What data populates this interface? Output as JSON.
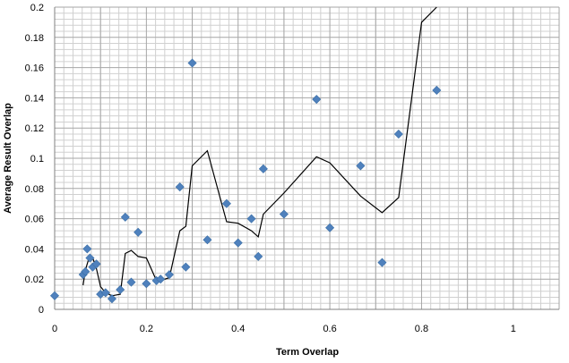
{
  "chart_data": {
    "type": "scatter",
    "title": "",
    "xlabel": "Term Overlap",
    "ylabel": "Average Result  Overlap",
    "xlim": [
      0,
      1.1
    ],
    "ylim": [
      0,
      0.2
    ],
    "x_ticks": [
      0,
      0.2,
      0.4,
      0.6,
      0.8,
      1
    ],
    "x_tick_labels": [
      "0",
      "0.2",
      "0.4",
      "0.6",
      "0.8",
      "1"
    ],
    "y_ticks": [
      0,
      0.02,
      0.04,
      0.06,
      0.08,
      0.1,
      0.12,
      0.14,
      0.16,
      0.18,
      0.2
    ],
    "y_tick_labels": [
      "0",
      "0.02",
      "0.04",
      "0.06",
      "0.08",
      "0.1",
      "0.12",
      "0.14",
      "0.16",
      "0.18",
      "0.2"
    ],
    "grid": true,
    "legend": "none",
    "colors": {
      "marker": "#4f81bd",
      "line": "#000000",
      "grid": "#a6a6a6"
    },
    "series": [
      {
        "kind": "scatter",
        "marker": "diamond",
        "points": [
          [
            0.0,
            0.009
          ],
          [
            0.062,
            0.023
          ],
          [
            0.067,
            0.025
          ],
          [
            0.071,
            0.04
          ],
          [
            0.077,
            0.034
          ],
          [
            0.083,
            0.028
          ],
          [
            0.091,
            0.03
          ],
          [
            0.1,
            0.01
          ],
          [
            0.111,
            0.011
          ],
          [
            0.125,
            0.007
          ],
          [
            0.143,
            0.013
          ],
          [
            0.154,
            0.061
          ],
          [
            0.167,
            0.018
          ],
          [
            0.182,
            0.051
          ],
          [
            0.2,
            0.017
          ],
          [
            0.222,
            0.019
          ],
          [
            0.231,
            0.02
          ],
          [
            0.25,
            0.023
          ],
          [
            0.273,
            0.081
          ],
          [
            0.286,
            0.028
          ],
          [
            0.3,
            0.163
          ],
          [
            0.333,
            0.046
          ],
          [
            0.375,
            0.07
          ],
          [
            0.4,
            0.044
          ],
          [
            0.429,
            0.06
          ],
          [
            0.444,
            0.035
          ],
          [
            0.455,
            0.093
          ],
          [
            0.5,
            0.063
          ],
          [
            0.571,
            0.139
          ],
          [
            0.6,
            0.054
          ],
          [
            0.667,
            0.095
          ],
          [
            0.714,
            0.031
          ],
          [
            0.75,
            0.116
          ],
          [
            0.833,
            0.145
          ]
        ]
      },
      {
        "kind": "line",
        "points": [
          [
            0.062,
            0.016
          ],
          [
            0.067,
            0.026
          ],
          [
            0.071,
            0.03
          ],
          [
            0.077,
            0.036
          ],
          [
            0.083,
            0.034
          ],
          [
            0.091,
            0.027
          ],
          [
            0.1,
            0.015
          ],
          [
            0.111,
            0.011
          ],
          [
            0.125,
            0.009
          ],
          [
            0.143,
            0.01
          ],
          [
            0.154,
            0.037
          ],
          [
            0.167,
            0.039
          ],
          [
            0.182,
            0.035
          ],
          [
            0.2,
            0.034
          ],
          [
            0.222,
            0.019
          ],
          [
            0.231,
            0.019
          ],
          [
            0.25,
            0.021
          ],
          [
            0.273,
            0.052
          ],
          [
            0.286,
            0.055
          ],
          [
            0.3,
            0.095
          ],
          [
            0.333,
            0.105
          ],
          [
            0.375,
            0.058
          ],
          [
            0.4,
            0.057
          ],
          [
            0.429,
            0.052
          ],
          [
            0.444,
            0.048
          ],
          [
            0.455,
            0.063
          ],
          [
            0.5,
            0.077
          ],
          [
            0.571,
            0.101
          ],
          [
            0.6,
            0.097
          ],
          [
            0.667,
            0.075
          ],
          [
            0.714,
            0.064
          ],
          [
            0.75,
            0.074
          ],
          [
            0.8,
            0.19
          ],
          [
            0.833,
            0.2
          ]
        ]
      }
    ]
  }
}
